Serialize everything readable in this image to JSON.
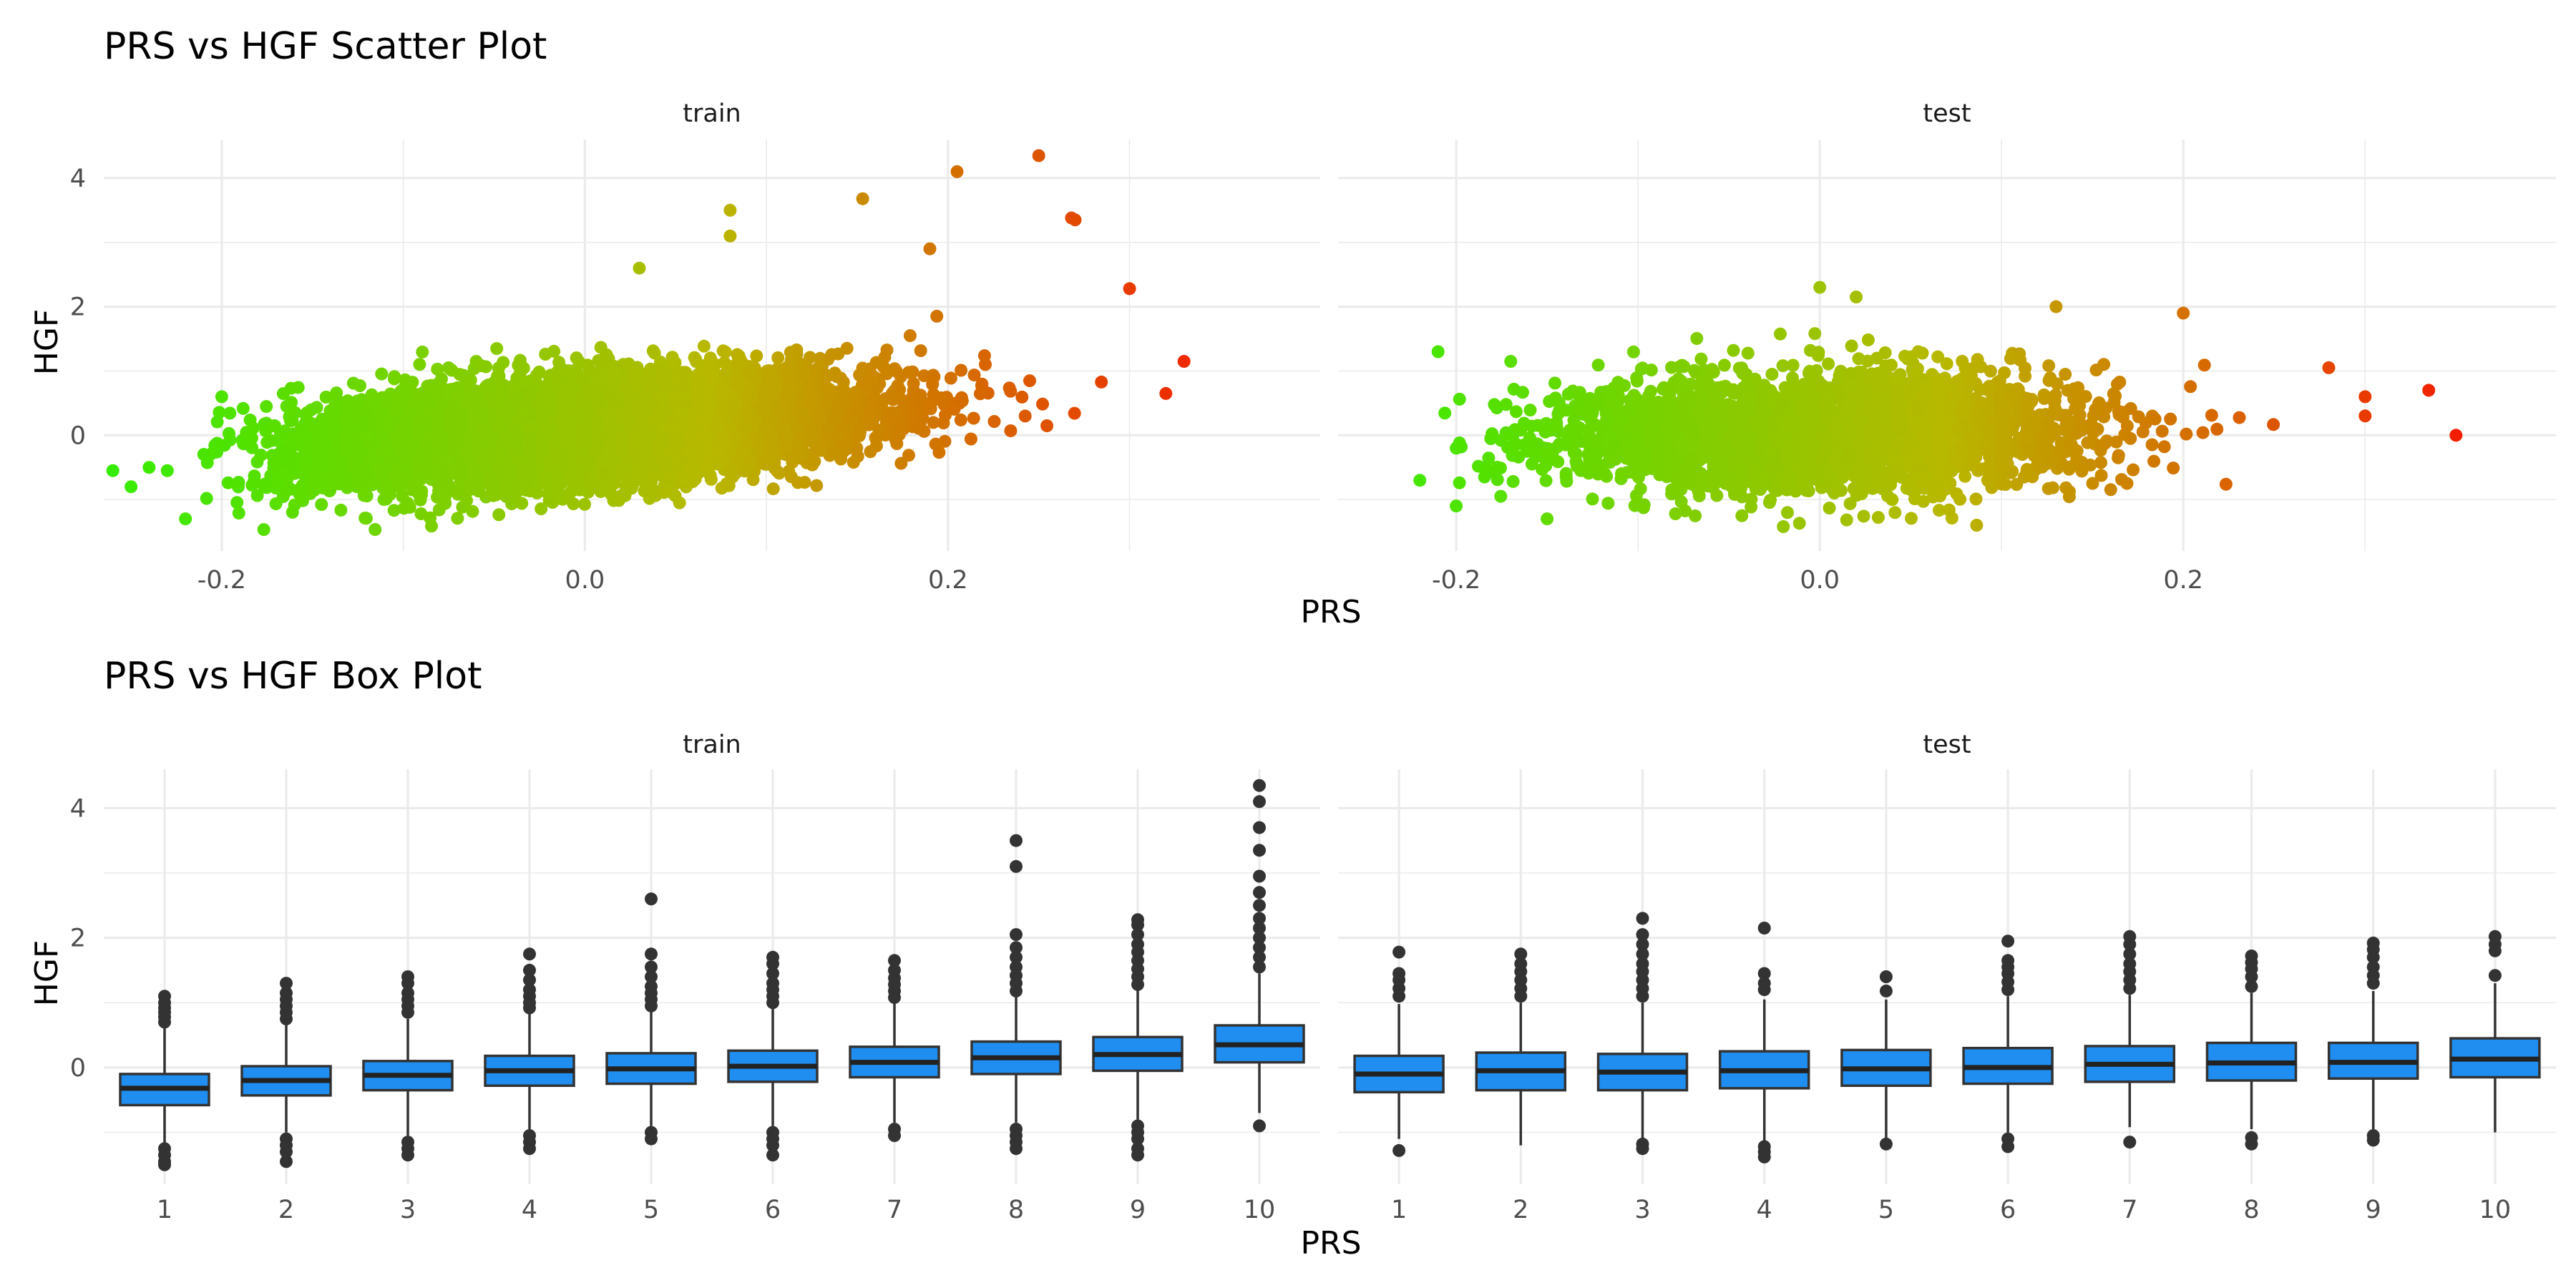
{
  "chart_data": [
    {
      "type": "scatter",
      "title": "PRS vs HGF Scatter Plot",
      "xlabel": "PRS",
      "ylabel": "HGF",
      "facets": [
        "train",
        "test"
      ],
      "xlim": [
        -0.265,
        0.405
      ],
      "ylim": [
        -1.8,
        4.6
      ],
      "x_ticks": [
        -0.2,
        0.0,
        0.2
      ],
      "x_tick_labels": [
        "-0.2",
        "0.0",
        "0.2"
      ],
      "y_ticks": [
        0,
        2,
        4
      ],
      "y_tick_labels": [
        "0",
        "2",
        "4"
      ],
      "grid": true,
      "legend": "none",
      "color_gradient": {
        "low": "#33ee00",
        "mid": "#b8b800",
        "high": "#ff0000",
        "mapped_to": "PRS"
      },
      "series": [
        {
          "name": "train",
          "n_points": 7000,
          "trend": {
            "intercept": 0.1,
            "slope": 2.2,
            "x_mean": 0.0,
            "x_sd": 0.075,
            "resid_sd": 0.4
          },
          "outliers": [
            [
              0.25,
              4.35
            ],
            [
              0.205,
              4.1
            ],
            [
              0.08,
              3.5
            ],
            [
              0.08,
              3.1
            ],
            [
              0.153,
              3.68
            ],
            [
              0.03,
              2.6
            ],
            [
              0.268,
              3.38
            ],
            [
              0.27,
              3.35
            ],
            [
              0.3,
              2.28
            ],
            [
              0.19,
              2.9
            ],
            [
              0.33,
              1.15
            ],
            [
              0.32,
              0.65
            ],
            [
              -0.26,
              -0.55
            ],
            [
              -0.25,
              -0.8
            ],
            [
              -0.24,
              -0.5
            ],
            [
              -0.23,
              -0.55
            ],
            [
              -0.2,
              0.6
            ],
            [
              -0.22,
              -1.3
            ]
          ]
        },
        {
          "name": "test",
          "n_points": 3000,
          "trend": {
            "intercept": 0.05,
            "slope": 0.6,
            "x_mean": 0.0,
            "x_sd": 0.075,
            "resid_sd": 0.45
          },
          "outliers": [
            [
              0.35,
              0.0
            ],
            [
              0.335,
              0.7
            ],
            [
              0.3,
              0.3
            ],
            [
              0.3,
              0.6
            ],
            [
              0.28,
              1.05
            ],
            [
              0.2,
              1.9
            ],
            [
              -0.21,
              1.3
            ],
            [
              -0.2,
              -0.2
            ],
            [
              -0.22,
              -0.7
            ],
            [
              -0.2,
              -1.1
            ],
            [
              -0.17,
              1.15
            ],
            [
              0.0,
              2.3
            ],
            [
              0.02,
              2.15
            ],
            [
              0.13,
              2.0
            ],
            [
              -0.15,
              -1.3
            ]
          ]
        }
      ]
    },
    {
      "type": "box",
      "title": "PRS vs HGF Box Plot",
      "xlabel": "PRS",
      "ylabel": "HGF",
      "facets": [
        "train",
        "test"
      ],
      "categories": [
        "1",
        "2",
        "3",
        "4",
        "5",
        "6",
        "7",
        "8",
        "9",
        "10"
      ],
      "ylim": [
        -1.8,
        4.6
      ],
      "y_ticks": [
        0,
        2,
        4
      ],
      "y_tick_labels": [
        "0",
        "2",
        "4"
      ],
      "grid": true,
      "fill": "#1f8ef0",
      "series": [
        {
          "name": "train",
          "boxes": [
            {
              "q1": -0.58,
              "median": -0.32,
              "q3": -0.1,
              "lower": -1.18,
              "upper": 0.62,
              "outliers": [
                0.7,
                0.78,
                0.85,
                0.92,
                1.0,
                1.1,
                -1.25,
                -1.35,
                -1.45,
                -1.5
              ]
            },
            {
              "q1": -0.43,
              "median": -0.2,
              "q3": 0.02,
              "lower": -1.0,
              "upper": 0.68,
              "outliers": [
                0.75,
                0.85,
                0.95,
                1.05,
                1.15,
                1.3,
                -1.1,
                -1.2,
                -1.3,
                -1.45
              ]
            },
            {
              "q1": -0.35,
              "median": -0.12,
              "q3": 0.1,
              "lower": -1.05,
              "upper": 0.75,
              "outliers": [
                0.85,
                0.95,
                1.05,
                1.15,
                1.3,
                1.4,
                -1.15,
                -1.25,
                -1.35
              ]
            },
            {
              "q1": -0.28,
              "median": -0.05,
              "q3": 0.18,
              "lower": -0.95,
              "upper": 0.85,
              "outliers": [
                0.92,
                1.0,
                1.1,
                1.2,
                1.35,
                1.5,
                1.75,
                -1.05,
                -1.15,
                -1.25
              ]
            },
            {
              "q1": -0.25,
              "median": -0.02,
              "q3": 0.22,
              "lower": -0.9,
              "upper": 0.88,
              "outliers": [
                0.95,
                1.05,
                1.15,
                1.25,
                1.4,
                1.55,
                1.75,
                2.6,
                -1.0,
                -1.1
              ]
            },
            {
              "q1": -0.22,
              "median": 0.02,
              "q3": 0.26,
              "lower": -0.9,
              "upper": 0.95,
              "outliers": [
                1.0,
                1.1,
                1.2,
                1.3,
                1.45,
                1.6,
                1.7,
                -1.0,
                -1.1,
                -1.2,
                -1.35
              ]
            },
            {
              "q1": -0.15,
              "median": 0.08,
              "q3": 0.32,
              "lower": -0.85,
              "upper": 1.0,
              "outliers": [
                1.08,
                1.18,
                1.28,
                1.38,
                1.5,
                1.65,
                -0.95,
                -1.05
              ]
            },
            {
              "q1": -0.1,
              "median": 0.15,
              "q3": 0.4,
              "lower": -0.85,
              "upper": 1.1,
              "outliers": [
                1.18,
                1.3,
                1.42,
                1.55,
                1.7,
                1.85,
                2.05,
                3.1,
                3.5,
                -0.95,
                -1.05,
                -1.15,
                -1.25
              ]
            },
            {
              "q1": -0.05,
              "median": 0.2,
              "q3": 0.47,
              "lower": -0.8,
              "upper": 1.2,
              "outliers": [
                1.28,
                1.4,
                1.52,
                1.65,
                1.78,
                1.9,
                2.05,
                2.2,
                2.28,
                -0.9,
                -1.0,
                -1.1,
                -1.25,
                -1.35
              ]
            },
            {
              "q1": 0.08,
              "median": 0.35,
              "q3": 0.65,
              "lower": -0.7,
              "upper": 1.45,
              "outliers": [
                1.55,
                1.7,
                1.85,
                2.0,
                2.15,
                2.3,
                2.5,
                2.7,
                2.95,
                3.35,
                3.7,
                4.1,
                4.35,
                -0.9
              ]
            }
          ]
        },
        {
          "name": "test",
          "boxes": [
            {
              "q1": -0.38,
              "median": -0.1,
              "q3": 0.18,
              "lower": -1.1,
              "upper": 0.98,
              "outliers": [
                1.1,
                1.22,
                1.35,
                1.45,
                1.78,
                -1.28
              ]
            },
            {
              "q1": -0.35,
              "median": -0.05,
              "q3": 0.23,
              "lower": -1.2,
              "upper": 1.0,
              "outliers": [
                1.1,
                1.22,
                1.35,
                1.48,
                1.6,
                1.75
              ]
            },
            {
              "q1": -0.35,
              "median": -0.07,
              "q3": 0.21,
              "lower": -1.1,
              "upper": 1.0,
              "outliers": [
                1.1,
                1.22,
                1.35,
                1.48,
                1.6,
                1.75,
                1.9,
                2.05,
                2.3,
                -1.18,
                -1.25
              ]
            },
            {
              "q1": -0.32,
              "median": -0.05,
              "q3": 0.25,
              "lower": -1.15,
              "upper": 1.05,
              "outliers": [
                1.2,
                1.3,
                1.45,
                2.15,
                -1.22,
                -1.3,
                -1.38
              ]
            },
            {
              "q1": -0.28,
              "median": -0.02,
              "q3": 0.27,
              "lower": -1.1,
              "upper": 1.05,
              "outliers": [
                1.18,
                1.4,
                -1.18
              ]
            },
            {
              "q1": -0.25,
              "median": 0.0,
              "q3": 0.3,
              "lower": -1.0,
              "upper": 1.1,
              "outliers": [
                1.2,
                1.32,
                1.45,
                1.55,
                1.65,
                1.95,
                -1.1,
                -1.22
              ]
            },
            {
              "q1": -0.22,
              "median": 0.05,
              "q3": 0.33,
              "lower": -0.92,
              "upper": 1.12,
              "outliers": [
                1.22,
                1.35,
                1.48,
                1.6,
                1.75,
                1.9,
                2.02,
                -1.15
              ]
            },
            {
              "q1": -0.2,
              "median": 0.07,
              "q3": 0.38,
              "lower": -0.95,
              "upper": 1.15,
              "outliers": [
                1.25,
                1.4,
                1.52,
                1.62,
                1.72,
                -1.08,
                -1.18
              ]
            },
            {
              "q1": -0.17,
              "median": 0.08,
              "q3": 0.38,
              "lower": -0.95,
              "upper": 1.18,
              "outliers": [
                1.3,
                1.42,
                1.55,
                1.7,
                1.82,
                1.92,
                -1.05,
                -1.12
              ]
            },
            {
              "q1": -0.15,
              "median": 0.13,
              "q3": 0.45,
              "lower": -1.0,
              "upper": 1.3,
              "outliers": [
                1.42,
                1.8,
                1.9,
                2.02
              ]
            }
          ]
        }
      ]
    }
  ]
}
